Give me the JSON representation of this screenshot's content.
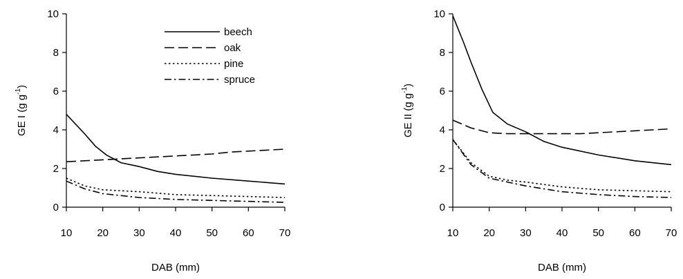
{
  "chart_data": [
    {
      "type": "line",
      "title": "",
      "xlabel": "DAB (mm)",
      "ylabel_main": "GE I (g g",
      "ylabel_sup": "-1",
      "ylabel_close": ")",
      "xlim": [
        10,
        70
      ],
      "ylim": [
        0,
        10
      ],
      "xticks": [
        10,
        20,
        30,
        40,
        50,
        60,
        70
      ],
      "yticks": [
        0,
        2,
        4,
        6,
        8,
        10
      ],
      "legend": {
        "position": "top-right"
      },
      "series": [
        {
          "name": "beech",
          "style": "solid",
          "x": [
            10,
            15,
            18,
            21,
            25,
            30,
            35,
            40,
            50,
            60,
            70
          ],
          "y": [
            4.8,
            3.8,
            3.15,
            2.7,
            2.3,
            2.1,
            1.85,
            1.7,
            1.5,
            1.35,
            1.2
          ]
        },
        {
          "name": "oak",
          "style": "long-dash",
          "x": [
            10,
            15,
            20,
            25,
            30,
            35,
            40,
            45,
            50,
            55,
            60,
            65,
            70
          ],
          "y": [
            2.35,
            2.4,
            2.45,
            2.5,
            2.55,
            2.6,
            2.65,
            2.7,
            2.75,
            2.85,
            2.9,
            2.95,
            3.0
          ]
        },
        {
          "name": "pine",
          "style": "dot",
          "x": [
            10,
            15,
            20,
            25,
            30,
            40,
            50,
            60,
            70
          ],
          "y": [
            1.5,
            1.1,
            0.9,
            0.85,
            0.8,
            0.65,
            0.6,
            0.55,
            0.5
          ]
        },
        {
          "name": "spruce",
          "style": "dash-dot",
          "x": [
            10,
            15,
            20,
            25,
            30,
            40,
            50,
            60,
            70
          ],
          "y": [
            1.35,
            0.95,
            0.7,
            0.6,
            0.5,
            0.4,
            0.35,
            0.3,
            0.25
          ]
        }
      ]
    },
    {
      "type": "line",
      "title": "",
      "xlabel": "DAB (mm)",
      "ylabel_main": "GE II (g g",
      "ylabel_sup": "-1",
      "ylabel_close": ")",
      "xlim": [
        10,
        70
      ],
      "ylim": [
        0,
        10
      ],
      "xticks": [
        10,
        20,
        30,
        40,
        50,
        60,
        70
      ],
      "yticks": [
        0,
        2,
        4,
        6,
        8,
        10
      ],
      "series": [
        {
          "name": "beech",
          "style": "solid",
          "x": [
            10,
            13,
            15,
            18,
            21,
            25,
            30,
            35,
            40,
            50,
            60,
            70
          ],
          "y": [
            9.9,
            8.5,
            7.5,
            6.1,
            4.9,
            4.3,
            3.9,
            3.4,
            3.1,
            2.7,
            2.4,
            2.2
          ]
        },
        {
          "name": "oak",
          "style": "long-dash",
          "x": [
            10,
            15,
            20,
            25,
            30,
            35,
            40,
            45,
            50,
            55,
            60,
            65,
            70
          ],
          "y": [
            4.5,
            4.1,
            3.85,
            3.8,
            3.8,
            3.8,
            3.8,
            3.8,
            3.85,
            3.9,
            3.95,
            4.0,
            4.05
          ]
        },
        {
          "name": "pine",
          "style": "dot",
          "x": [
            10,
            15,
            20,
            25,
            30,
            40,
            50,
            60,
            70
          ],
          "y": [
            3.5,
            2.3,
            1.6,
            1.4,
            1.3,
            1.05,
            0.9,
            0.85,
            0.8
          ]
        },
        {
          "name": "spruce",
          "style": "dash-dot",
          "x": [
            10,
            15,
            20,
            25,
            30,
            40,
            50,
            60,
            70
          ],
          "y": [
            3.5,
            2.2,
            1.5,
            1.3,
            1.1,
            0.8,
            0.65,
            0.55,
            0.5
          ]
        }
      ]
    }
  ]
}
